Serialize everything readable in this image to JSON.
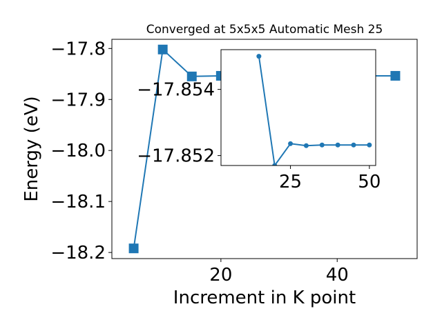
{
  "chart_data": [
    {
      "type": "line",
      "title": "Converged at 5x5x5 Automatic Mesh 25",
      "xlabel": "Increment in K point",
      "ylabel": "Energy (eV)",
      "x": [
        5,
        10,
        15,
        20,
        25,
        30,
        35,
        40,
        45,
        50
      ],
      "series": [
        {
          "values": [
            -18.192,
            -17.802,
            -17.8548,
            -17.8536,
            -17.8536,
            -17.8536,
            -17.8536,
            -17.8536,
            -17.8536,
            -17.8536
          ]
        }
      ],
      "xlim": [
        1.25,
        53.75
      ],
      "ylim": [
        -18.212,
        -17.782
      ],
      "xticks": [
        20,
        40
      ],
      "yticks": [
        -18.2,
        -18.1,
        -18.0,
        -17.9,
        -17.8
      ],
      "xtick_labels": [
        "20",
        "40"
      ],
      "ytick_labels": [
        "−18.2",
        "−18.1",
        "−18.0",
        "−17.9",
        "−17.8"
      ],
      "marker": "square",
      "color": "#1f77b4",
      "grid": false
    },
    {
      "type": "line",
      "role": "inset",
      "x": [
        15,
        20,
        25,
        30,
        35,
        40,
        45,
        50
      ],
      "series": [
        {
          "values": [
            -17.855,
            -17.8517,
            -17.85236,
            -17.8523,
            -17.85232,
            -17.85232,
            -17.85232,
            -17.85232
          ]
        }
      ],
      "xlim": [
        3,
        52
      ],
      "ylim": [
        -17.8517,
        -17.8552
      ],
      "xticks": [
        25,
        50
      ],
      "yticks": [
        -17.854,
        -17.852
      ],
      "xtick_labels": [
        "25",
        "50"
      ],
      "ytick_labels": [
        "−17.854",
        "−17.852"
      ],
      "marker": "circle",
      "color": "#1f77b4",
      "grid": false
    }
  ]
}
